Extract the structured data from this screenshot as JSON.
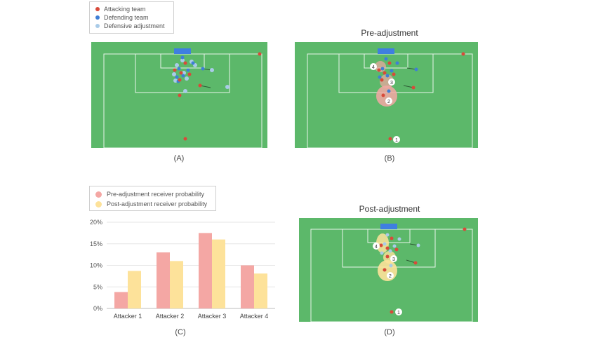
{
  "colors": {
    "pitch": "#5cb86a",
    "line": "#e8f4ea",
    "attacking": "#d84a3a",
    "defending": "#3f7fd6",
    "adjustment": "#a9cbe8",
    "pre_bar": "#f4a7a4",
    "post_bar": "#fde29a",
    "goal": "#3f7fe0"
  },
  "pitch_legend": {
    "items": [
      {
        "label": "Attacking team",
        "color": "#d84a3a"
      },
      {
        "label": "Defending team",
        "color": "#3f7fd6"
      },
      {
        "label": "Defensive adjustment",
        "color": "#a9cbe8"
      }
    ]
  },
  "panels": {
    "a": {
      "label": "(A)",
      "title": ""
    },
    "b": {
      "label": "(B)",
      "title": "Pre-adjustment"
    },
    "c": {
      "label": "(C)"
    },
    "d": {
      "label": "(D)",
      "title": "Post-adjustment"
    }
  },
  "markers": {
    "m1": "1",
    "m2": "2",
    "m3": "3",
    "m4": "4"
  },
  "chart_data": {
    "type": "bar",
    "categories": [
      "Attacker 1",
      "Attacker 2",
      "Attacker 3",
      "Attacker 4"
    ],
    "series": [
      {
        "name": "Pre-adjustment receiver probability",
        "values": [
          3.8,
          13.0,
          17.5,
          10.0
        ],
        "color": "#f4a7a4"
      },
      {
        "name": "Post-adjustment receiver probability",
        "values": [
          8.7,
          11.0,
          16.0,
          8.1
        ],
        "color": "#fde29a"
      }
    ],
    "yticks": [
      "0%",
      "5%",
      "10%",
      "15%",
      "20%"
    ],
    "ylim": [
      0,
      20
    ],
    "grid": true,
    "legend": "top-left"
  }
}
